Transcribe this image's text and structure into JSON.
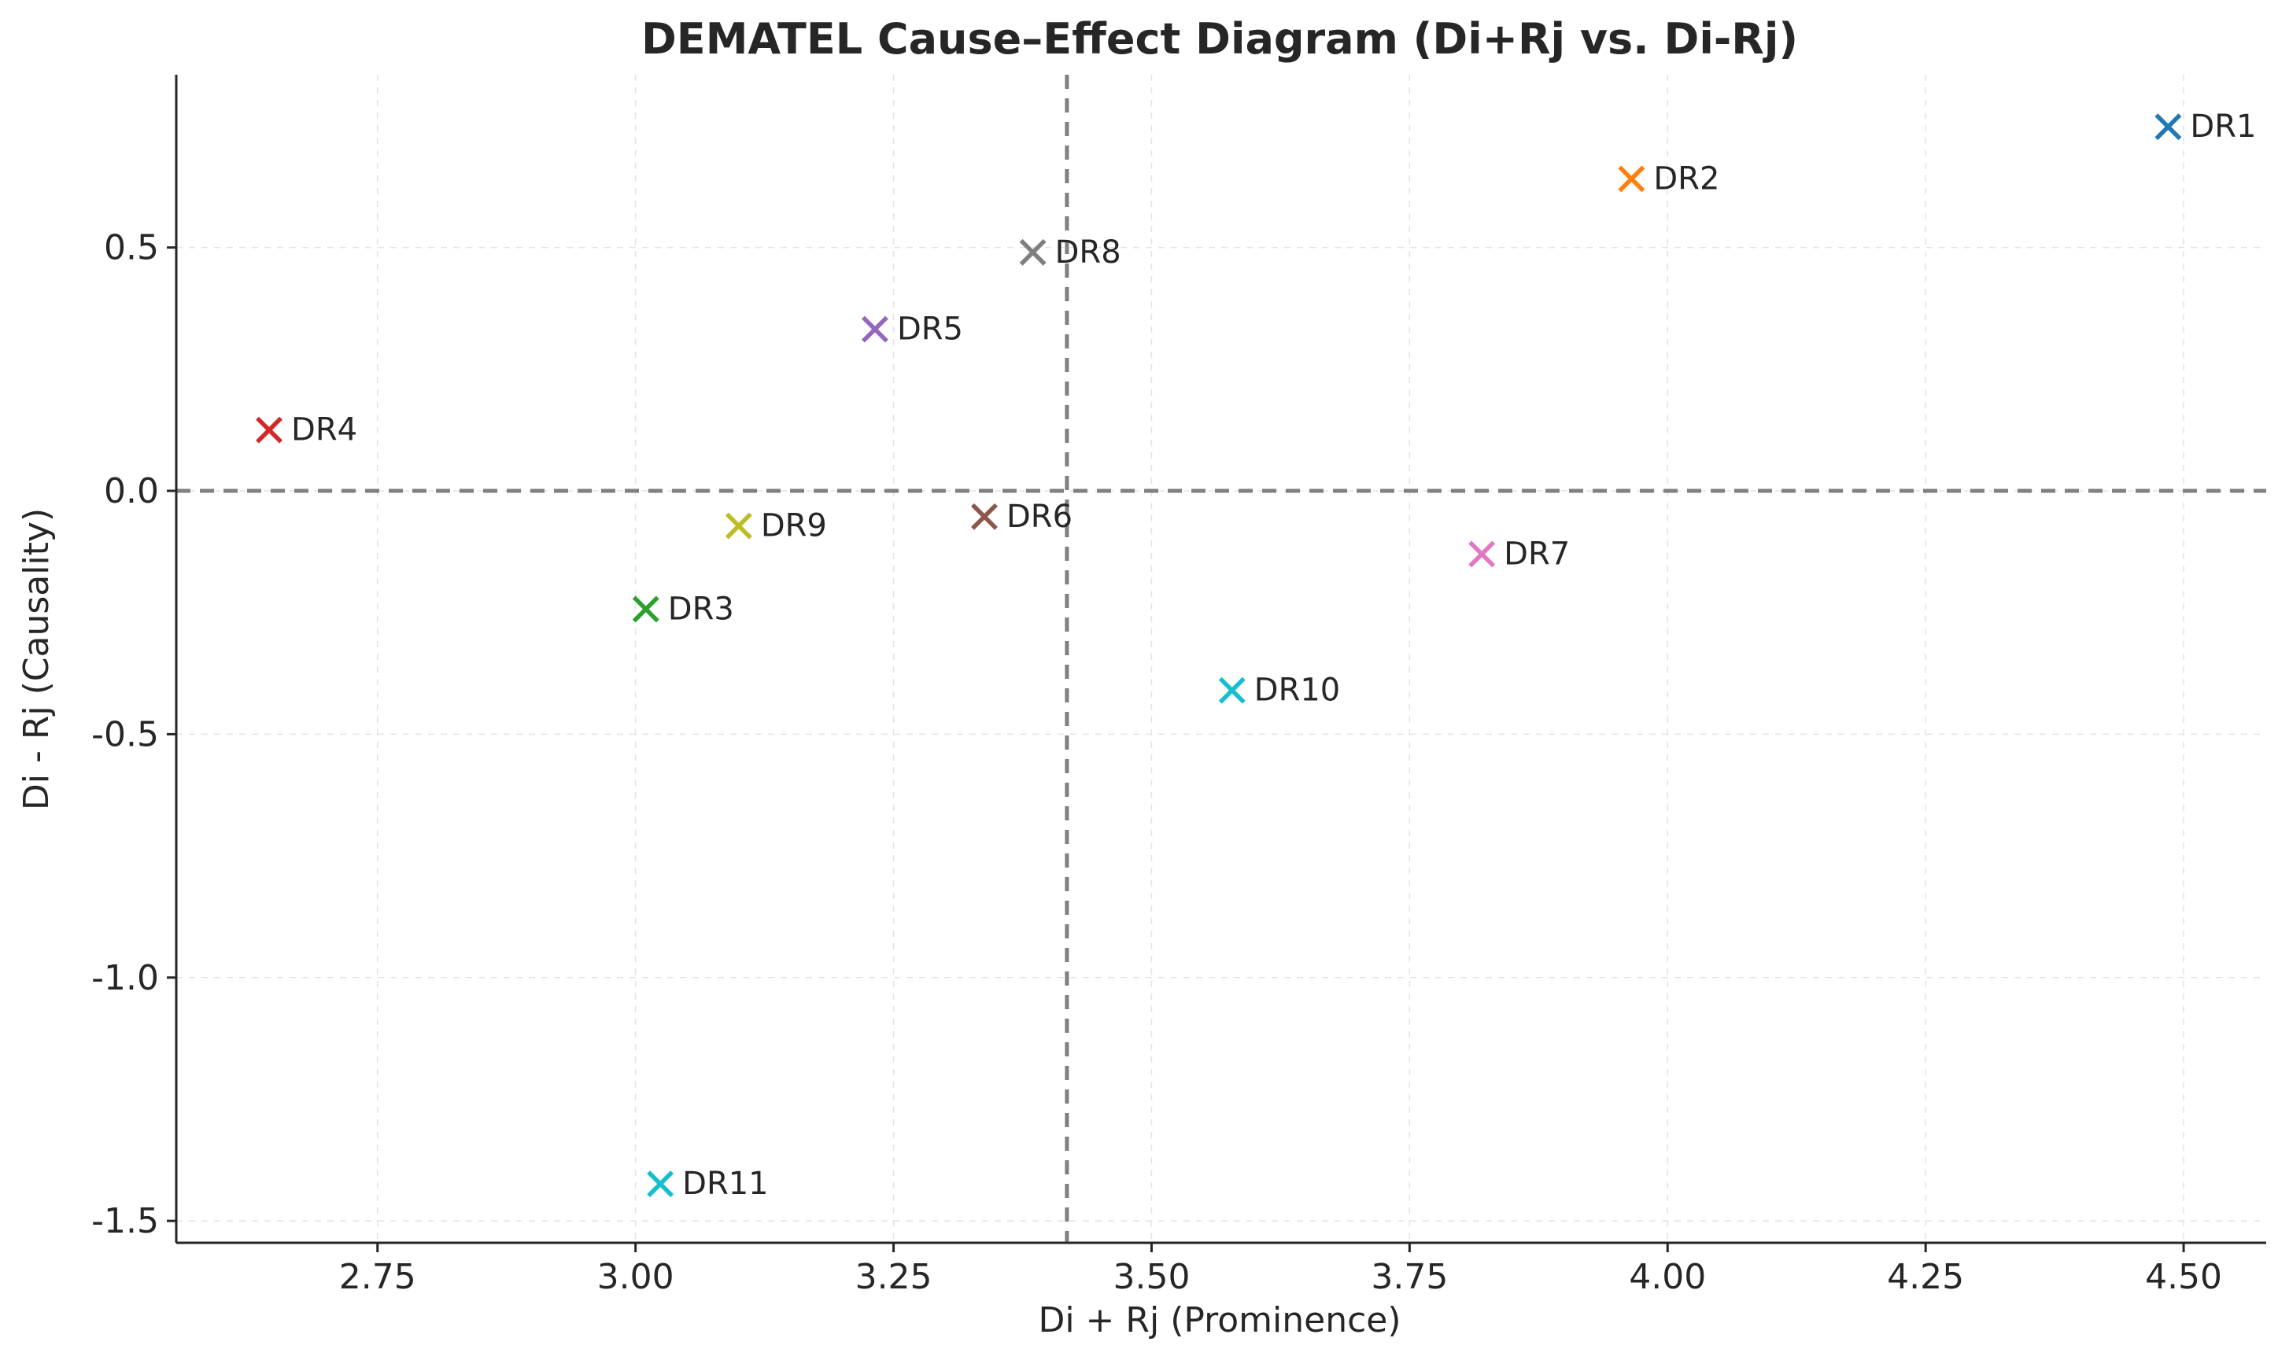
{
  "chart_data": {
    "type": "scatter",
    "title": "DEMATEL Cause–Effect Diagram (Di+Rj vs. Di-Rj)",
    "xlabel": "Di + Rj (Prominence)",
    "ylabel": "Di - Rj (Causality)",
    "xlim": [
      2.555,
      4.58
    ],
    "ylim": [
      -1.545,
      0.855
    ],
    "xticks": [
      2.75,
      3.0,
      3.25,
      3.5,
      3.75,
      4.0,
      4.25,
      4.5
    ],
    "xtick_labels": [
      "2.75",
      "3.00",
      "3.25",
      "3.50",
      "3.75",
      "4.00",
      "4.25",
      "4.50"
    ],
    "yticks": [
      0.5,
      0.0,
      -0.5,
      -1.0,
      -1.5
    ],
    "ytick_labels": [
      "0.5",
      "0.0",
      "-0.5",
      "-1.0",
      "-1.5"
    ],
    "grid": true,
    "marker": "x",
    "reference_lines": {
      "x_mean": 3.418,
      "y_zero": 0.0
    },
    "points": [
      {
        "label": "DR1",
        "x": 4.485,
        "y": 0.748,
        "color": "#1f77b4"
      },
      {
        "label": "DR2",
        "x": 3.965,
        "y": 0.641,
        "color": "#ff7f0e"
      },
      {
        "label": "DR3",
        "x": 3.01,
        "y": -0.243,
        "color": "#2ca02c"
      },
      {
        "label": "DR4",
        "x": 2.645,
        "y": 0.125,
        "color": "#d62728"
      },
      {
        "label": "DR5",
        "x": 3.232,
        "y": 0.332,
        "color": "#9467bd"
      },
      {
        "label": "DR6",
        "x": 3.338,
        "y": -0.053,
        "color": "#8c564b"
      },
      {
        "label": "DR7",
        "x": 3.82,
        "y": -0.13,
        "color": "#e377c2"
      },
      {
        "label": "DR8",
        "x": 3.385,
        "y": 0.49,
        "color": "#7f7f7f"
      },
      {
        "label": "DR9",
        "x": 3.1,
        "y": -0.072,
        "color": "#bcbd22"
      },
      {
        "label": "DR10",
        "x": 3.578,
        "y": -0.41,
        "color": "#17becf"
      },
      {
        "label": "DR11",
        "x": 3.024,
        "y": -1.424,
        "color": "#17becf"
      }
    ]
  }
}
